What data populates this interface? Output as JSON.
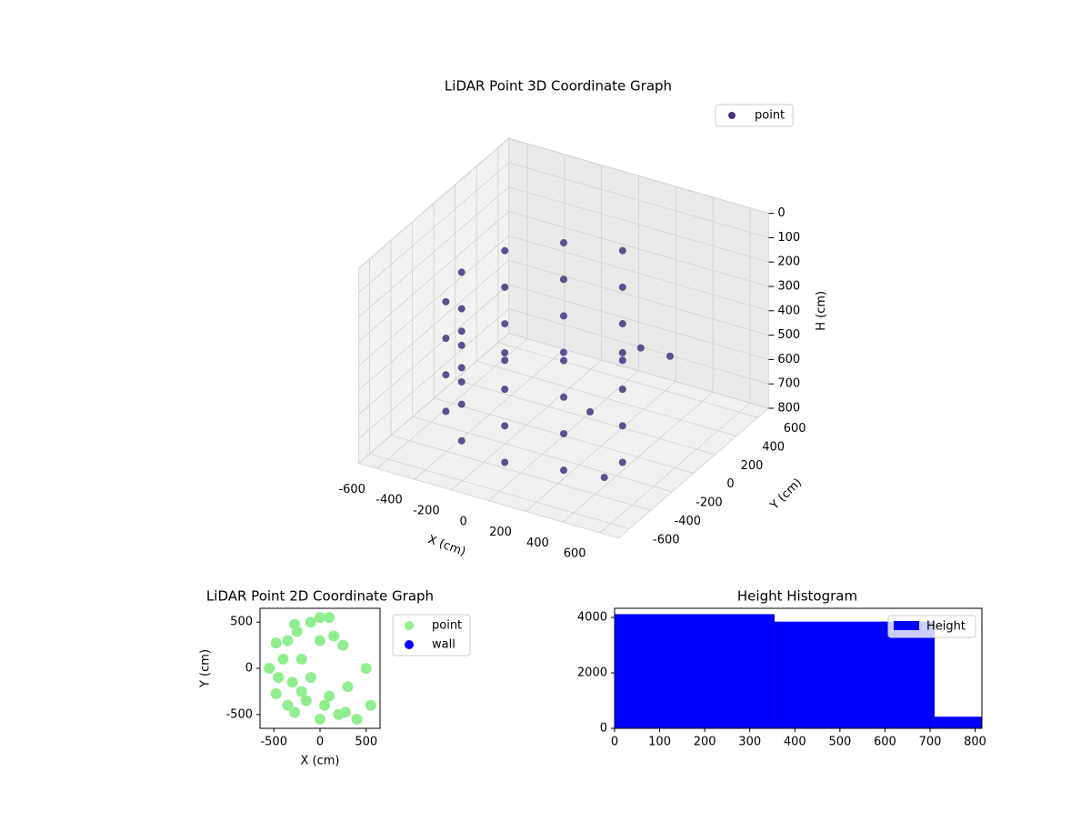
{
  "chart_data": [
    {
      "type": "scatter3d",
      "title": "LiDAR Point 3D Coordinate Graph",
      "xlabel": "X (cm)",
      "ylabel": "Y (cm)",
      "zlabel": "H (cm)",
      "xlim": [
        -700,
        700
      ],
      "ylim": [
        -700,
        700
      ],
      "zlim": [
        800,
        0
      ],
      "xticks": [
        -600,
        -400,
        -200,
        0,
        200,
        400,
        600
      ],
      "yticks": [
        -600,
        -400,
        -200,
        0,
        200,
        400,
        600
      ],
      "zticks": [
        0,
        100,
        200,
        300,
        400,
        500,
        600,
        700,
        800
      ],
      "legend": "upper right",
      "series": [
        {
          "name": "point",
          "color": "#46327e",
          "x": [
            0,
            -275,
            -476,
            -550,
            -476,
            -275,
            0,
            275,
            476,
            0,
            -275,
            -476,
            -550,
            -476,
            -275,
            0,
            275,
            476,
            0,
            -275,
            -476,
            -550,
            -476,
            -275,
            0,
            275,
            476,
            0,
            -275,
            -476,
            -550,
            -476,
            -275,
            0,
            275,
            476,
            300,
            400,
            200,
            450
          ],
          "y": [
            550,
            476,
            275,
            0,
            -275,
            -476,
            -550,
            -476,
            -275,
            550,
            476,
            275,
            0,
            -275,
            -476,
            -550,
            -476,
            -275,
            550,
            476,
            275,
            0,
            -275,
            -476,
            -550,
            -476,
            -275,
            550,
            476,
            275,
            0,
            -275,
            -476,
            -550,
            -476,
            -275,
            200,
            300,
            -100,
            -400
          ],
          "h": [
            250,
            250,
            250,
            250,
            250,
            250,
            250,
            250,
            250,
            400,
            400,
            400,
            400,
            400,
            400,
            400,
            400,
            400,
            550,
            550,
            550,
            550,
            550,
            550,
            550,
            550,
            550,
            700,
            700,
            700,
            700,
            700,
            700,
            700,
            700,
            700,
            450,
            500,
            620,
            720
          ]
        }
      ]
    },
    {
      "type": "scatter",
      "title": "LiDAR Point 2D Coordinate Graph",
      "xlabel": "X (cm)",
      "ylabel": "Y (cm)",
      "xlim": [
        -650,
        650
      ],
      "ylim": [
        -650,
        650
      ],
      "xticks": [
        -500,
        0,
        500
      ],
      "yticks": [
        -500,
        0,
        500
      ],
      "legend": "outside right",
      "series": [
        {
          "name": "point",
          "color": "#90ee90",
          "x": [
            0,
            -275,
            -476,
            -550,
            -476,
            -275,
            0,
            275,
            400,
            -350,
            -400,
            -300,
            -150,
            50,
            200,
            -200,
            -100,
            100,
            -250,
            -100,
            100,
            0,
            150,
            500,
            550,
            250,
            300,
            -450,
            -350,
            -200
          ],
          "y": [
            550,
            476,
            275,
            0,
            -275,
            -476,
            -550,
            -476,
            -550,
            300,
            100,
            -150,
            -350,
            -400,
            -500,
            100,
            -100,
            -300,
            400,
            500,
            550,
            300,
            350,
            0,
            -400,
            250,
            -200,
            -100,
            -400,
            -250
          ]
        },
        {
          "name": "wall",
          "color": "#0000ff",
          "x": [],
          "y": []
        }
      ]
    },
    {
      "type": "histogram",
      "title": "Height Histogram",
      "xlim": [
        0,
        815
      ],
      "ylim": [
        0,
        4330
      ],
      "xticks": [
        0,
        100,
        200,
        300,
        400,
        500,
        600,
        700,
        800
      ],
      "yticks": [
        0,
        2000,
        4000
      ],
      "legend": "upper right",
      "bins": [
        0,
        355,
        710,
        815
      ],
      "series": [
        {
          "name": "Height",
          "color": "#0000ff",
          "values": [
            4120,
            3850,
            420
          ]
        }
      ]
    }
  ]
}
